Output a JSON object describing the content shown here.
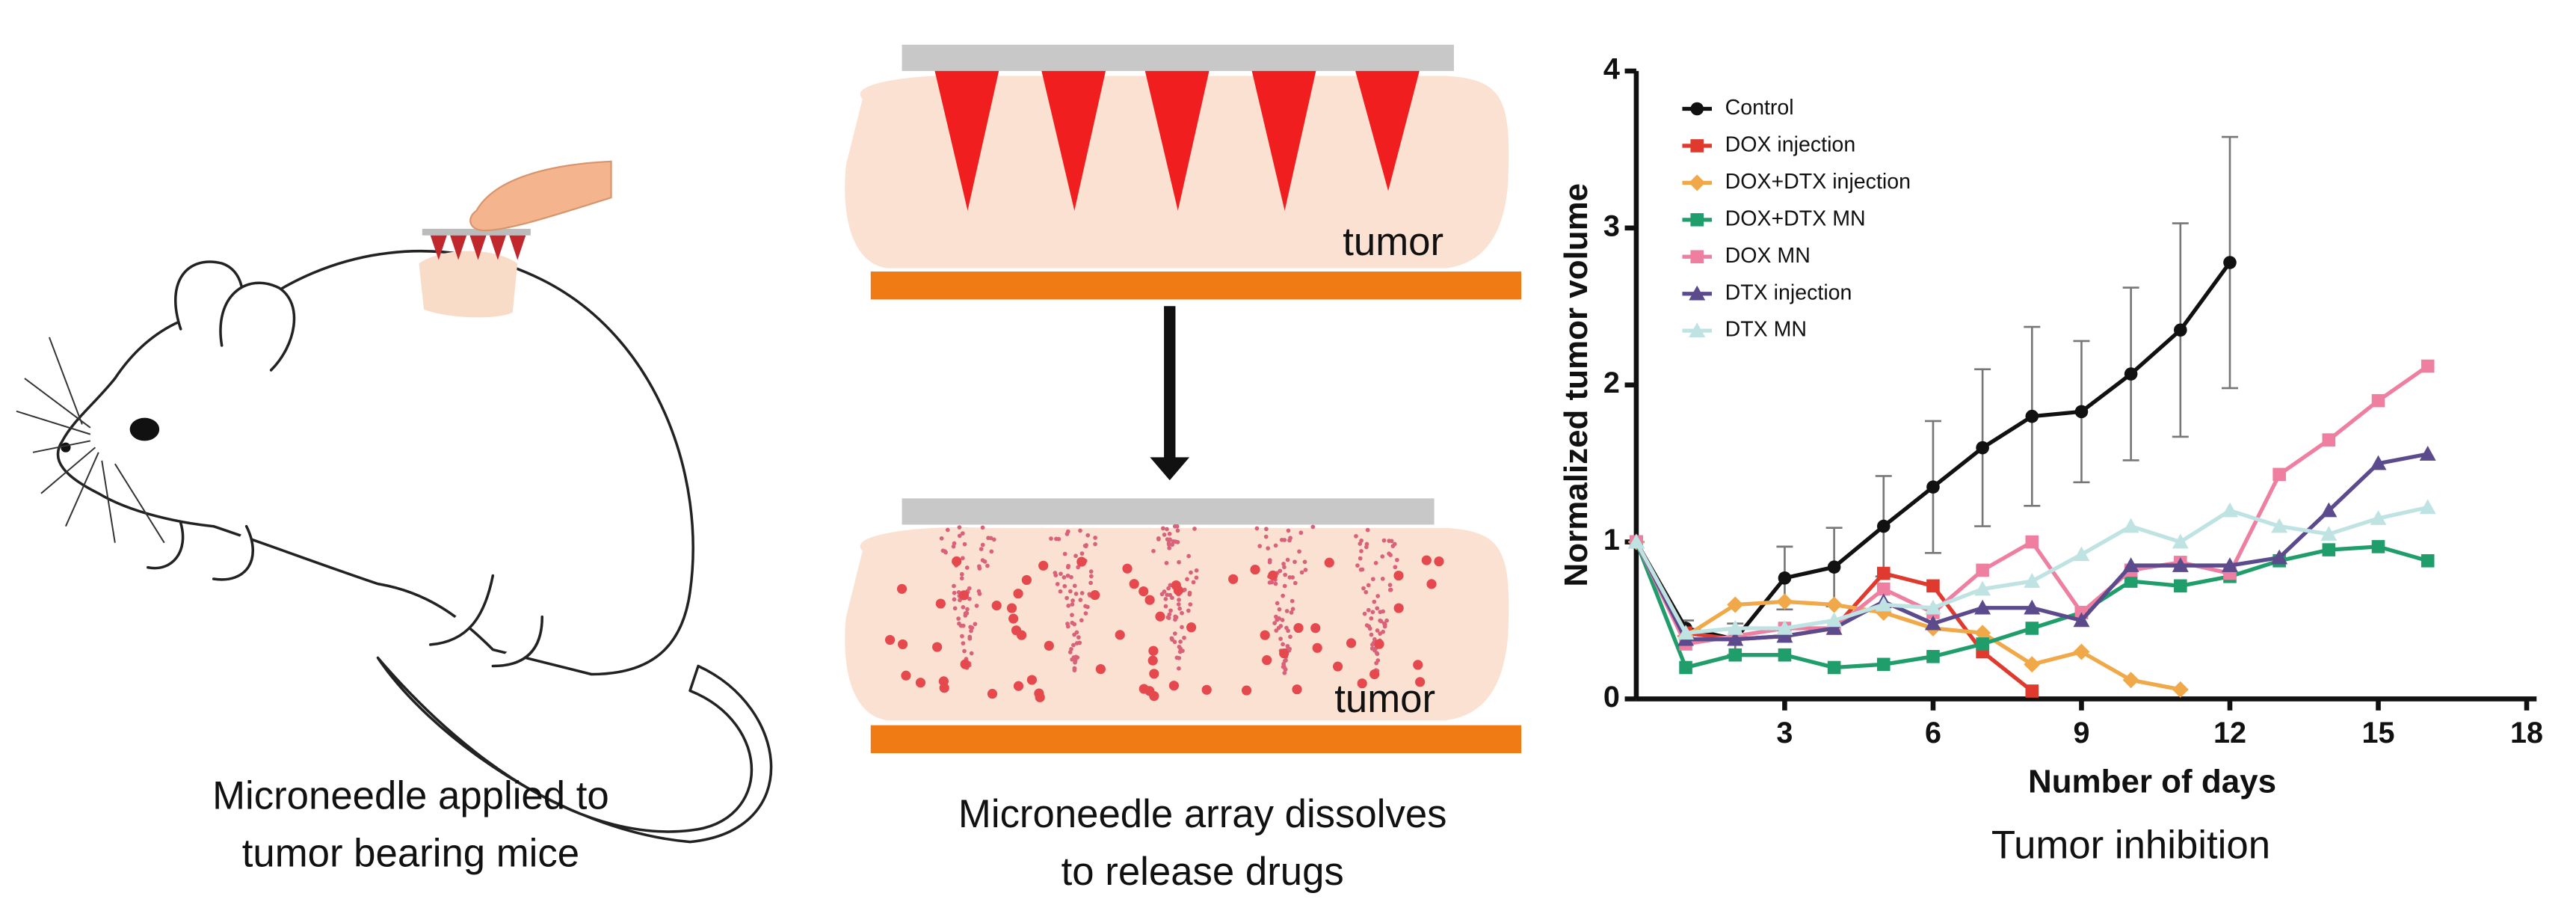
{
  "panels": {
    "left_caption": [
      "Microneedle applied to",
      "tumor bearing mice"
    ],
    "middle_labels": [
      "tumor",
      "tumor"
    ],
    "middle_caption": [
      "Microneedle array dissolves",
      "to release drugs"
    ],
    "right_caption": "Tumor inhibition"
  },
  "chart_data": {
    "type": "line",
    "xlabel": "Number of days",
    "ylabel": "Normalized tumor volume",
    "x": [
      0,
      1,
      2,
      3,
      4,
      5,
      6,
      7,
      8,
      9,
      10,
      11,
      12,
      13,
      14,
      15,
      16
    ],
    "xlim": [
      0,
      18.2
    ],
    "xticks": [
      3,
      6,
      9,
      12,
      15,
      18
    ],
    "ylim": [
      0,
      4
    ],
    "yticks": [
      0,
      1,
      2,
      3,
      4
    ],
    "legend": "upper left",
    "series": [
      {
        "name": "Control",
        "color": "#111111",
        "marker": "circle",
        "values": [
          1,
          0.45,
          0.38,
          0.77,
          0.84,
          1.1,
          1.35,
          1.6,
          1.8,
          1.83,
          2.07,
          2.35,
          2.78,
          null,
          null,
          null,
          null
        ],
        "errors": [
          0,
          0.05,
          0.1,
          0.2,
          0.25,
          0.32,
          0.42,
          0.5,
          0.57,
          0.45,
          0.55,
          0.68,
          0.8,
          null,
          null,
          null,
          null
        ]
      },
      {
        "name": "DOX injection",
        "color": "#e03a2f",
        "marker": "square",
        "values": [
          1,
          0.42,
          0.38,
          0.4,
          0.45,
          0.8,
          0.72,
          0.3,
          0.05,
          null,
          null,
          null,
          null,
          null,
          null,
          null,
          null
        ]
      },
      {
        "name": "DOX+DTX injection",
        "color": "#f0a848",
        "marker": "diamond",
        "values": [
          1,
          0.4,
          0.6,
          0.62,
          0.6,
          0.55,
          0.45,
          0.42,
          0.22,
          0.3,
          0.12,
          0.06,
          null,
          null,
          null,
          null,
          null
        ]
      },
      {
        "name": "DOX+DTX MN",
        "color": "#1f9e6b",
        "marker": "square",
        "values": [
          1,
          0.2,
          0.28,
          0.28,
          0.2,
          0.22,
          0.27,
          0.35,
          0.45,
          0.55,
          0.75,
          0.72,
          0.78,
          0.88,
          0.95,
          0.97,
          0.88
        ]
      },
      {
        "name": "DOX MN",
        "color": "#ee7fa0",
        "marker": "square",
        "values": [
          1,
          0.35,
          0.4,
          0.45,
          0.45,
          0.7,
          0.55,
          0.82,
          1.0,
          0.55,
          0.82,
          0.87,
          0.8,
          1.43,
          1.65,
          1.9,
          2.12
        ]
      },
      {
        "name": "DTX injection",
        "color": "#5b4a8c",
        "marker": "triangle",
        "values": [
          1,
          0.38,
          0.38,
          0.4,
          0.45,
          0.62,
          0.48,
          0.58,
          0.58,
          0.5,
          0.85,
          0.85,
          0.85,
          0.9,
          1.2,
          1.5,
          1.56
        ]
      },
      {
        "name": "DTX MN",
        "color": "#bfe3e3",
        "marker": "triangle",
        "values": [
          1,
          0.42,
          0.45,
          0.45,
          0.5,
          0.6,
          0.58,
          0.7,
          0.75,
          0.92,
          1.1,
          1.0,
          1.2,
          1.1,
          1.05,
          1.15,
          1.22
        ]
      }
    ]
  }
}
